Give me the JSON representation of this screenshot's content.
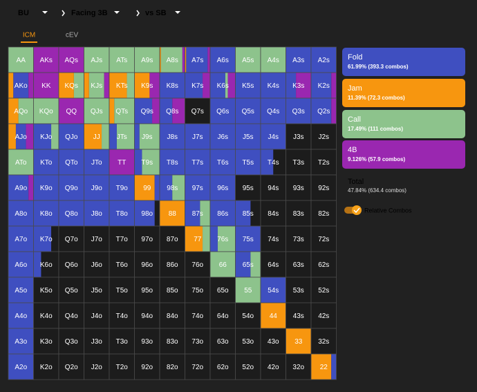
{
  "header": {
    "position": "BU",
    "scenario": "Facing 3B",
    "opponent": "vs SB"
  },
  "tabs": [
    "ICM",
    "cEV"
  ],
  "actions": [
    {
      "name": "Fold",
      "stats": "61.99% (393.3 combos)",
      "color": "#3f4fc0"
    },
    {
      "name": "Jam",
      "stats": "11.39% (72.3 combos)",
      "color": "#f7960f"
    },
    {
      "name": "Call",
      "stats": "17.49% (111 combos)",
      "color": "#8dc38c"
    },
    {
      "name": "4B",
      "stats": "9.126% (57.9 combos)",
      "color": "#9a27b0"
    }
  ],
  "total": {
    "label": "Total",
    "stats": "47.84% (634.4 combos)"
  },
  "toggle": "Relative Combos",
  "grid": {
    "rows": [
      {
        "hands": [
          "AA",
          "AKs",
          "AQs",
          "AJs",
          "ATs",
          "A9s",
          "A8s",
          "A7s",
          "A6s",
          "A5s",
          "A4s",
          "A3s",
          "A2s"
        ],
        "mix": [
          [
            0,
            0,
            100,
            0
          ],
          [
            0,
            0,
            0,
            100
          ],
          [
            0,
            0,
            0,
            100
          ],
          [
            0,
            0,
            100,
            0
          ],
          [
            0,
            0,
            100,
            0
          ],
          [
            0,
            0,
            100,
            0
          ],
          [
            0,
            5,
            85,
            10
          ],
          [
            85,
            5,
            0,
            10
          ],
          [
            100,
            0,
            0,
            0
          ],
          [
            0,
            0,
            100,
            0
          ],
          [
            0,
            0,
            100,
            0
          ],
          [
            100,
            0,
            0,
            0
          ],
          [
            100,
            0,
            0,
            0
          ]
        ]
      },
      {
        "hands": [
          "AKo",
          "KK",
          "KQs",
          "KJs",
          "KTs",
          "K9s",
          "K8s",
          "K7s",
          "K6s",
          "K5s",
          "K4s",
          "K3s",
          "K2s"
        ],
        "mix": [
          [
            60,
            20,
            0,
            20
          ],
          [
            0,
            0,
            0,
            100
          ],
          [
            0,
            60,
            40,
            0
          ],
          [
            0,
            20,
            60,
            20
          ],
          [
            0,
            70,
            30,
            0
          ],
          [
            0,
            60,
            0,
            40
          ],
          [
            100,
            0,
            0,
            0
          ],
          [
            70,
            0,
            0,
            30
          ],
          [
            60,
            0,
            10,
            30
          ],
          [
            100,
            0,
            0,
            0
          ],
          [
            100,
            0,
            0,
            0
          ],
          [
            40,
            0,
            0,
            60
          ],
          [
            80,
            0,
            0,
            20
          ]
        ]
      },
      {
        "hands": [
          "AQo",
          "KQo",
          "QQ",
          "QJs",
          "QTs",
          "Q9s",
          "Q8s",
          "Q7s",
          "Q6s",
          "Q5s",
          "Q4s",
          "Q3s",
          "Q2s"
        ],
        "mix": [
          [
            0,
            40,
            60,
            0
          ],
          [
            0,
            0,
            100,
            0
          ],
          [
            0,
            0,
            0,
            100
          ],
          [
            0,
            0,
            100,
            0
          ],
          [
            0,
            20,
            80,
            0
          ],
          [
            70,
            0,
            0,
            30
          ],
          [
            50,
            0,
            0,
            50
          ],
          [
            0,
            0,
            0,
            0
          ],
          [
            100,
            0,
            0,
            0
          ],
          [
            100,
            0,
            0,
            0
          ],
          [
            100,
            0,
            0,
            0
          ],
          [
            100,
            0,
            0,
            0
          ],
          [
            80,
            0,
            0,
            20
          ]
        ]
      },
      {
        "hands": [
          "AJo",
          "KJo",
          "QJo",
          "JJ",
          "JTs",
          "J9s",
          "J8s",
          "J7s",
          "J6s",
          "J5s",
          "J4s",
          "J3s",
          "J2s"
        ],
        "mix": [
          [
            40,
            30,
            0,
            30
          ],
          [
            70,
            0,
            30,
            0
          ],
          [
            100,
            0,
            0,
            0
          ],
          [
            0,
            70,
            30,
            0
          ],
          [
            30,
            0,
            70,
            0
          ],
          [
            20,
            0,
            80,
            0
          ],
          [
            100,
            0,
            0,
            0
          ],
          [
            100,
            0,
            0,
            0
          ],
          [
            100,
            0,
            0,
            0
          ],
          [
            100,
            0,
            0,
            0
          ],
          [
            100,
            0,
            0,
            0
          ],
          [
            0,
            0,
            0,
            0
          ],
          [
            0,
            0,
            0,
            0
          ]
        ]
      },
      {
        "hands": [
          "ATo",
          "KTo",
          "QTo",
          "JTo",
          "TT",
          "T9s",
          "T8s",
          "T7s",
          "T6s",
          "T5s",
          "T4s",
          "T3s",
          "T2s"
        ],
        "mix": [
          [
            0,
            0,
            100,
            0
          ],
          [
            100,
            0,
            0,
            0
          ],
          [
            100,
            0,
            0,
            0
          ],
          [
            100,
            0,
            0,
            0
          ],
          [
            0,
            0,
            0,
            100
          ],
          [
            30,
            0,
            70,
            0
          ],
          [
            100,
            0,
            0,
            0
          ],
          [
            100,
            0,
            0,
            0
          ],
          [
            100,
            0,
            0,
            0
          ],
          [
            100,
            0,
            0,
            0
          ],
          [
            50,
            0,
            0,
            0
          ],
          [
            0,
            0,
            0,
            0
          ],
          [
            0,
            0,
            0,
            0
          ]
        ]
      },
      {
        "hands": [
          "A9o",
          "K9o",
          "Q9o",
          "J9o",
          "T9o",
          "99",
          "98s",
          "97s",
          "96s",
          "95s",
          "94s",
          "93s",
          "92s"
        ],
        "mix": [
          [
            80,
            0,
            0,
            20
          ],
          [
            100,
            0,
            0,
            0
          ],
          [
            100,
            0,
            0,
            0
          ],
          [
            100,
            0,
            0,
            0
          ],
          [
            100,
            0,
            0,
            0
          ],
          [
            20,
            80,
            0,
            0
          ],
          [
            50,
            0,
            50,
            0
          ],
          [
            100,
            0,
            0,
            0
          ],
          [
            100,
            0,
            0,
            0
          ],
          [
            0,
            0,
            0,
            0
          ],
          [
            0,
            0,
            0,
            0
          ],
          [
            0,
            0,
            0,
            0
          ],
          [
            0,
            0,
            0,
            0
          ]
        ]
      },
      {
        "hands": [
          "A8o",
          "K8o",
          "Q8o",
          "J8o",
          "T8o",
          "98o",
          "88",
          "87s",
          "86s",
          "85s",
          "84s",
          "83s",
          "82s"
        ],
        "mix": [
          [
            100,
            0,
            0,
            0
          ],
          [
            100,
            0,
            0,
            0
          ],
          [
            100,
            0,
            0,
            0
          ],
          [
            100,
            0,
            0,
            0
          ],
          [
            100,
            0,
            0,
            0
          ],
          [
            80,
            0,
            0,
            0
          ],
          [
            0,
            100,
            0,
            0
          ],
          [
            60,
            0,
            40,
            0
          ],
          [
            100,
            0,
            0,
            0
          ],
          [
            60,
            0,
            0,
            0
          ],
          [
            0,
            0,
            0,
            0
          ],
          [
            0,
            0,
            0,
            0
          ],
          [
            0,
            0,
            0,
            0
          ]
        ]
      },
      {
        "hands": [
          "A7o",
          "K7o",
          "Q7o",
          "J7o",
          "T7o",
          "97o",
          "87o",
          "77",
          "76s",
          "75s",
          "74s",
          "73s",
          "72s"
        ],
        "mix": [
          [
            100,
            0,
            0,
            0
          ],
          [
            70,
            0,
            0,
            0
          ],
          [
            0,
            0,
            0,
            0
          ],
          [
            0,
            0,
            0,
            0
          ],
          [
            0,
            0,
            0,
            0
          ],
          [
            0,
            0,
            0,
            0
          ],
          [
            0,
            0,
            0,
            0
          ],
          [
            0,
            70,
            30,
            0
          ],
          [
            30,
            0,
            70,
            0
          ],
          [
            100,
            0,
            0,
            0
          ],
          [
            0,
            0,
            0,
            0
          ],
          [
            0,
            0,
            0,
            0
          ],
          [
            0,
            0,
            0,
            0
          ]
        ]
      },
      {
        "hands": [
          "A6o",
          "K6o",
          "Q6o",
          "J6o",
          "T6o",
          "96o",
          "86o",
          "76o",
          "66",
          "65s",
          "64s",
          "63s",
          "62s"
        ],
        "mix": [
          [
            100,
            0,
            0,
            0
          ],
          [
            30,
            0,
            0,
            0
          ],
          [
            0,
            0,
            0,
            0
          ],
          [
            0,
            0,
            0,
            0
          ],
          [
            0,
            0,
            0,
            0
          ],
          [
            0,
            0,
            0,
            0
          ],
          [
            0,
            0,
            0,
            0
          ],
          [
            0,
            0,
            0,
            0
          ],
          [
            0,
            0,
            100,
            0
          ],
          [
            60,
            0,
            40,
            0
          ],
          [
            0,
            0,
            0,
            0
          ],
          [
            0,
            0,
            0,
            0
          ],
          [
            0,
            0,
            0,
            0
          ]
        ]
      },
      {
        "hands": [
          "A5o",
          "K5o",
          "Q5o",
          "J5o",
          "T5o",
          "95o",
          "85o",
          "75o",
          "65o",
          "55",
          "54s",
          "53s",
          "52s"
        ],
        "mix": [
          [
            100,
            0,
            0,
            0
          ],
          [
            0,
            0,
            0,
            0
          ],
          [
            0,
            0,
            0,
            0
          ],
          [
            0,
            0,
            0,
            0
          ],
          [
            0,
            0,
            0,
            0
          ],
          [
            0,
            0,
            0,
            0
          ],
          [
            0,
            0,
            0,
            0
          ],
          [
            0,
            0,
            0,
            0
          ],
          [
            0,
            0,
            0,
            0
          ],
          [
            0,
            0,
            100,
            0
          ],
          [
            100,
            0,
            0,
            0
          ],
          [
            0,
            0,
            0,
            0
          ],
          [
            0,
            0,
            0,
            0
          ]
        ]
      },
      {
        "hands": [
          "A4o",
          "K4o",
          "Q4o",
          "J4o",
          "T4o",
          "94o",
          "84o",
          "74o",
          "64o",
          "54o",
          "44",
          "43s",
          "42s"
        ],
        "mix": [
          [
            100,
            0,
            0,
            0
          ],
          [
            0,
            0,
            0,
            0
          ],
          [
            0,
            0,
            0,
            0
          ],
          [
            0,
            0,
            0,
            0
          ],
          [
            0,
            0,
            0,
            0
          ],
          [
            0,
            0,
            0,
            0
          ],
          [
            0,
            0,
            0,
            0
          ],
          [
            0,
            0,
            0,
            0
          ],
          [
            0,
            0,
            0,
            0
          ],
          [
            0,
            0,
            0,
            0
          ],
          [
            0,
            100,
            0,
            0
          ],
          [
            0,
            0,
            0,
            0
          ],
          [
            0,
            0,
            0,
            0
          ]
        ]
      },
      {
        "hands": [
          "A3o",
          "K3o",
          "Q3o",
          "J3o",
          "T3o",
          "93o",
          "83o",
          "73o",
          "63o",
          "53o",
          "43o",
          "33",
          "32s"
        ],
        "mix": [
          [
            100,
            0,
            0,
            0
          ],
          [
            0,
            0,
            0,
            0
          ],
          [
            0,
            0,
            0,
            0
          ],
          [
            0,
            0,
            0,
            0
          ],
          [
            0,
            0,
            0,
            0
          ],
          [
            0,
            0,
            0,
            0
          ],
          [
            0,
            0,
            0,
            0
          ],
          [
            0,
            0,
            0,
            0
          ],
          [
            0,
            0,
            0,
            0
          ],
          [
            0,
            0,
            0,
            0
          ],
          [
            0,
            0,
            0,
            0
          ],
          [
            0,
            100,
            0,
            0
          ],
          [
            0,
            0,
            0,
            0
          ]
        ]
      },
      {
        "hands": [
          "A2o",
          "K2o",
          "Q2o",
          "J2o",
          "T2o",
          "92o",
          "82o",
          "72o",
          "62o",
          "52o",
          "42o",
          "32o",
          "22"
        ],
        "mix": [
          [
            100,
            0,
            0,
            0
          ],
          [
            0,
            0,
            0,
            0
          ],
          [
            0,
            0,
            0,
            0
          ],
          [
            0,
            0,
            0,
            0
          ],
          [
            0,
            0,
            0,
            0
          ],
          [
            0,
            0,
            0,
            0
          ],
          [
            0,
            0,
            0,
            0
          ],
          [
            0,
            0,
            0,
            0
          ],
          [
            0,
            0,
            0,
            0
          ],
          [
            0,
            0,
            0,
            0
          ],
          [
            0,
            0,
            0,
            0
          ],
          [
            0,
            0,
            0,
            0
          ],
          [
            20,
            80,
            0,
            0
          ]
        ]
      }
    ]
  }
}
